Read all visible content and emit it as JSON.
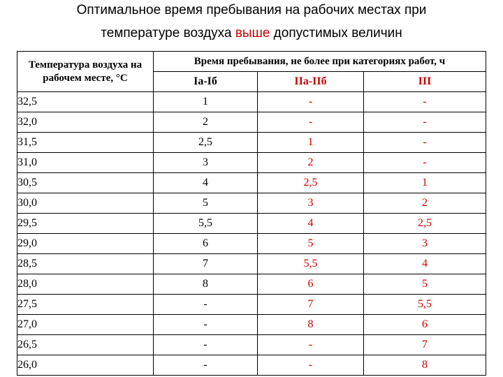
{
  "title": {
    "line1": "Оптимальное время пребывания на рабочих местах при",
    "line2_pre": "температуре воздуха ",
    "line2_highlight": "выше",
    "line2_post": " допустимых величин"
  },
  "table": {
    "header_temp": "Температура воздуха на рабочем месте, °С",
    "header_time": "Время пребывания, не более при категориях работ, ч",
    "categories": [
      "Iа-Iб",
      "IIа-IIб",
      "III"
    ],
    "rows": [
      [
        "32,5",
        "1",
        "-",
        "-"
      ],
      [
        "32,0",
        "2",
        "-",
        "-"
      ],
      [
        "31,5",
        "2,5",
        "1",
        "-"
      ],
      [
        "31,0",
        "3",
        "2",
        "-"
      ],
      [
        "30,5",
        "4",
        "2,5",
        "1"
      ],
      [
        "30,0",
        "5",
        "3",
        "2"
      ],
      [
        "29,5",
        "5,5",
        "4",
        "2,5"
      ],
      [
        "29,0",
        "6",
        "5",
        "3"
      ],
      [
        "28,5",
        "7",
        "5,5",
        "4"
      ],
      [
        "28,0",
        "8",
        "6",
        "5"
      ],
      [
        "27,5",
        "-",
        "7",
        "5,5"
      ],
      [
        "27,0",
        "-",
        "8",
        "6"
      ],
      [
        "26,5",
        "-",
        "-",
        "7"
      ],
      [
        "26,0",
        "-",
        "-",
        "8"
      ]
    ]
  },
  "colors": {
    "highlight": "#cc0000",
    "text": "#000000"
  }
}
